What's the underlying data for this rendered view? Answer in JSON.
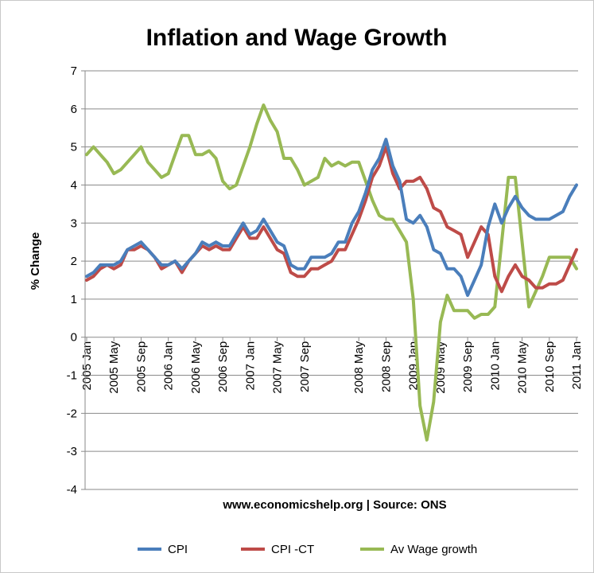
{
  "chart_data": {
    "type": "line",
    "title": "Inflation and Wage Growth",
    "xlabel": "www.economicshelp.org | Source: ONS",
    "ylabel": "% Change",
    "ylim": [
      -4,
      7
    ],
    "yticks": [
      7,
      6,
      5,
      4,
      3,
      2,
      1,
      0,
      -1,
      -2,
      -3,
      -4
    ],
    "grid": "horizontal",
    "legend_position": "bottom",
    "x_start": "2005 Jan",
    "x_end": "2011 Jan",
    "x_tick_labels": [
      {
        "label": "2005 Jan",
        "index": 0
      },
      {
        "label": "2005 May",
        "index": 4
      },
      {
        "label": "2005 Sep",
        "index": 8
      },
      {
        "label": "2006 Jan",
        "index": 12
      },
      {
        "label": "2006 May",
        "index": 16
      },
      {
        "label": "2006 Sep",
        "index": 20
      },
      {
        "label": "2007 Jan",
        "index": 24
      },
      {
        "label": "2007 May",
        "index": 28
      },
      {
        "label": "2007 Sep",
        "index": 32
      },
      {
        "label": "2008 May",
        "index": 40
      },
      {
        "label": "2008 Sep",
        "index": 44
      },
      {
        "label": "2009 Jan",
        "index": 48
      },
      {
        "label": "2009 May",
        "index": 52
      },
      {
        "label": "2009 Sep",
        "index": 56
      },
      {
        "label": "2010 Jan",
        "index": 60
      },
      {
        "label": "2010 May",
        "index": 64
      },
      {
        "label": "2010 Sep",
        "index": 68
      },
      {
        "label": "2011 Jan",
        "index": 72
      }
    ],
    "series": [
      {
        "name": "CPI",
        "color": "#4a7ebb",
        "values": [
          1.6,
          1.7,
          1.9,
          1.9,
          1.9,
          2.0,
          2.3,
          2.4,
          2.5,
          2.3,
          2.1,
          1.9,
          1.9,
          2.0,
          1.8,
          2.0,
          2.2,
          2.5,
          2.4,
          2.5,
          2.4,
          2.4,
          2.7,
          3.0,
          2.7,
          2.8,
          3.1,
          2.8,
          2.5,
          2.4,
          1.9,
          1.8,
          1.8,
          2.1,
          2.1,
          2.1,
          2.2,
          2.5,
          2.5,
          3.0,
          3.3,
          3.8,
          4.4,
          4.7,
          5.2,
          4.5,
          4.1,
          3.1,
          3.0,
          3.2,
          2.9,
          2.3,
          2.2,
          1.8,
          1.8,
          1.6,
          1.1,
          1.5,
          1.9,
          2.9,
          3.5,
          3.0,
          3.4,
          3.7,
          3.4,
          3.2,
          3.1,
          3.1,
          3.1,
          3.2,
          3.3,
          3.7,
          4.0
        ]
      },
      {
        "name": "CPI -CT",
        "color": "#be4b48",
        "values": [
          1.5,
          1.6,
          1.8,
          1.9,
          1.8,
          1.9,
          2.3,
          2.3,
          2.4,
          2.3,
          2.1,
          1.8,
          1.9,
          2.0,
          1.7,
          2.0,
          2.2,
          2.4,
          2.3,
          2.4,
          2.3,
          2.3,
          2.6,
          2.9,
          2.6,
          2.6,
          2.9,
          2.6,
          2.3,
          2.2,
          1.7,
          1.6,
          1.6,
          1.8,
          1.8,
          1.9,
          2.0,
          2.3,
          2.3,
          2.7,
          3.1,
          3.6,
          4.2,
          4.5,
          5.0,
          4.3,
          3.9,
          4.1,
          4.1,
          4.2,
          3.9,
          3.4,
          3.3,
          2.9,
          2.8,
          2.7,
          2.1,
          2.5,
          2.9,
          2.7,
          1.6,
          1.2,
          1.6,
          1.9,
          1.6,
          1.5,
          1.3,
          1.3,
          1.4,
          1.4,
          1.5,
          1.9,
          2.3
        ]
      },
      {
        "name": "Av Wage growth",
        "color": "#98b954",
        "values": [
          4.8,
          5.0,
          4.8,
          4.6,
          4.3,
          4.4,
          4.6,
          4.8,
          5.0,
          4.6,
          4.4,
          4.2,
          4.3,
          4.8,
          5.3,
          5.3,
          4.8,
          4.8,
          4.9,
          4.7,
          4.1,
          3.9,
          4.0,
          4.5,
          5.0,
          5.6,
          6.1,
          5.7,
          5.4,
          4.7,
          4.7,
          4.4,
          4.0,
          4.1,
          4.2,
          4.7,
          4.5,
          4.6,
          4.5,
          4.6,
          4.6,
          4.1,
          3.6,
          3.2,
          3.1,
          3.1,
          2.8,
          2.5,
          1.0,
          -1.8,
          -2.7,
          -1.7,
          0.4,
          1.1,
          0.7,
          0.7,
          0.7,
          0.5,
          0.6,
          0.6,
          0.8,
          2.5,
          4.2,
          4.2,
          2.5,
          0.8,
          1.2,
          1.6,
          2.1,
          2.1,
          2.1,
          2.1,
          1.8
        ]
      }
    ]
  }
}
